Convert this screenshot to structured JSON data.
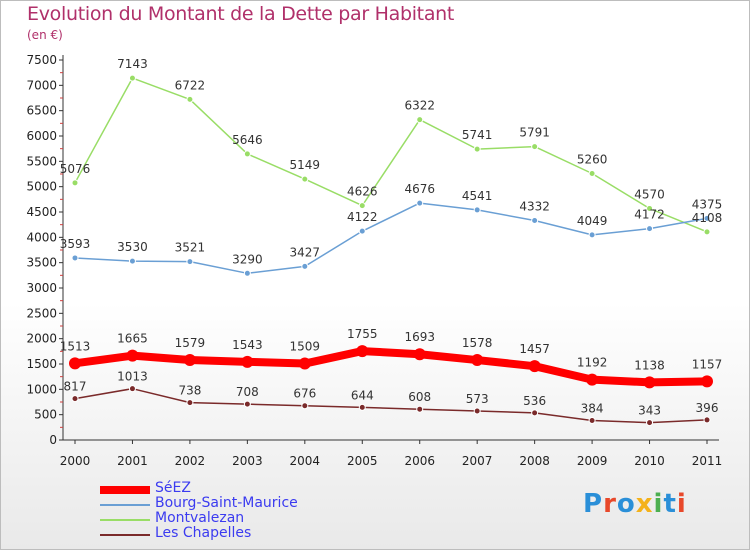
{
  "title": "Evolution du Montant de la Dette par Habitant",
  "unit": "(en €)",
  "logo": [
    "P",
    "r",
    "o",
    "x",
    "i",
    "t",
    "i"
  ],
  "logo_colors": [
    "#2a8fd8",
    "#e8482a",
    "#2a8fd8",
    "#f4b21b",
    "#4caf50",
    "#2a8fd8",
    "#e8482a"
  ],
  "chart_data": {
    "type": "line",
    "x": [
      "2000",
      "2001",
      "2002",
      "2003",
      "2004",
      "2005",
      "2006",
      "2007",
      "2008",
      "2009",
      "2010",
      "2011"
    ],
    "ylim": [
      0,
      7500
    ],
    "yticks": [
      "0",
      "500",
      "1000",
      "1500",
      "2000",
      "2500",
      "3000",
      "3500",
      "4000",
      "4500",
      "5000",
      "5500",
      "6000",
      "6500",
      "7000",
      "7500"
    ],
    "grid": false,
    "legend_position": "bottom-left",
    "series": [
      {
        "name": "SéEZ",
        "color": "#ff0000",
        "values": [
          1513,
          1665,
          1579,
          1543,
          1509,
          1755,
          1693,
          1578,
          1457,
          1192,
          1138,
          1157
        ]
      },
      {
        "name": "Bourg-Saint-Maurice",
        "color": "#6a9fd4",
        "values": [
          3593,
          3530,
          3521,
          3290,
          3427,
          4122,
          4676,
          4541,
          4332,
          4049,
          4172,
          4375
        ]
      },
      {
        "name": "Montvalezan",
        "color": "#99dd66",
        "values": [
          5076,
          7143,
          6722,
          5646,
          5149,
          4626,
          6322,
          5741,
          5791,
          5260,
          4570,
          4108
        ]
      },
      {
        "name": "Les Chapelles",
        "color": "#7a2a2a",
        "values": [
          817,
          1013,
          738,
          708,
          676,
          644,
          608,
          573,
          536,
          384,
          343,
          396
        ]
      }
    ]
  }
}
